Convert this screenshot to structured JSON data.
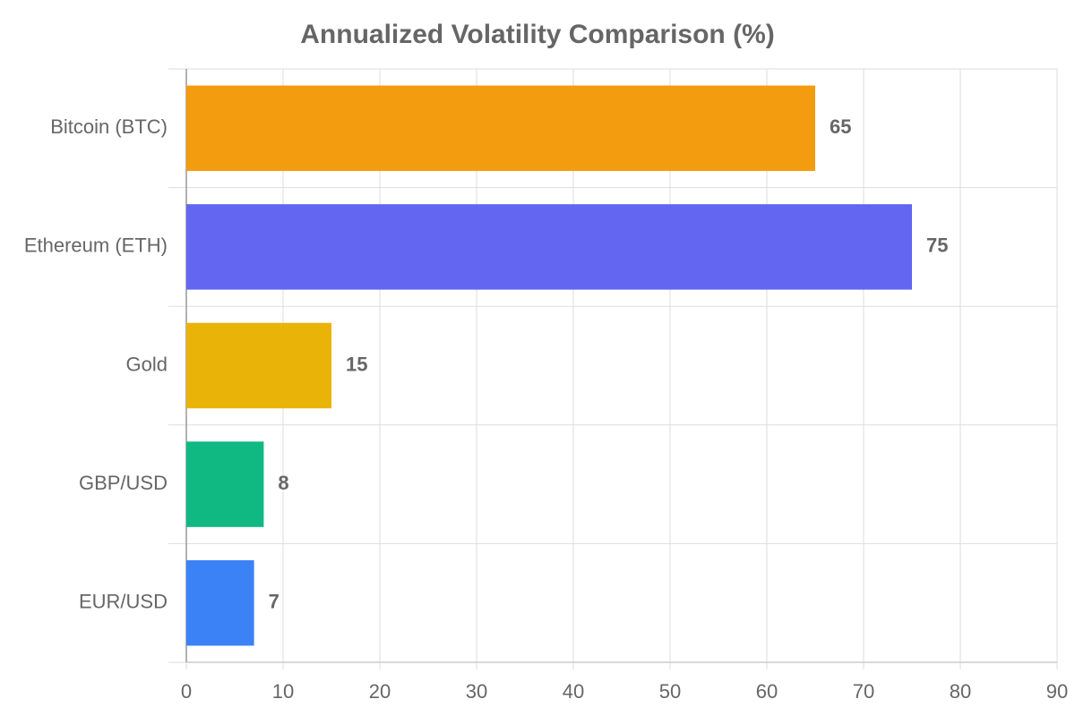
{
  "chart_data": {
    "type": "bar",
    "orientation": "horizontal",
    "title": "Annualized Volatility Comparison (%)",
    "categories": [
      "Bitcoin (BTC)",
      "Ethereum (ETH)",
      "Gold",
      "GBP/USD",
      "EUR/USD"
    ],
    "values": [
      65,
      75,
      15,
      8,
      7
    ],
    "colors": [
      "#f39c0f",
      "#6366f1",
      "#eab308",
      "#10b981",
      "#3b82f6"
    ],
    "xlim": [
      0,
      90
    ],
    "xticks": [
      0,
      10,
      20,
      30,
      40,
      50,
      60,
      70,
      80,
      90
    ],
    "grid": true
  }
}
